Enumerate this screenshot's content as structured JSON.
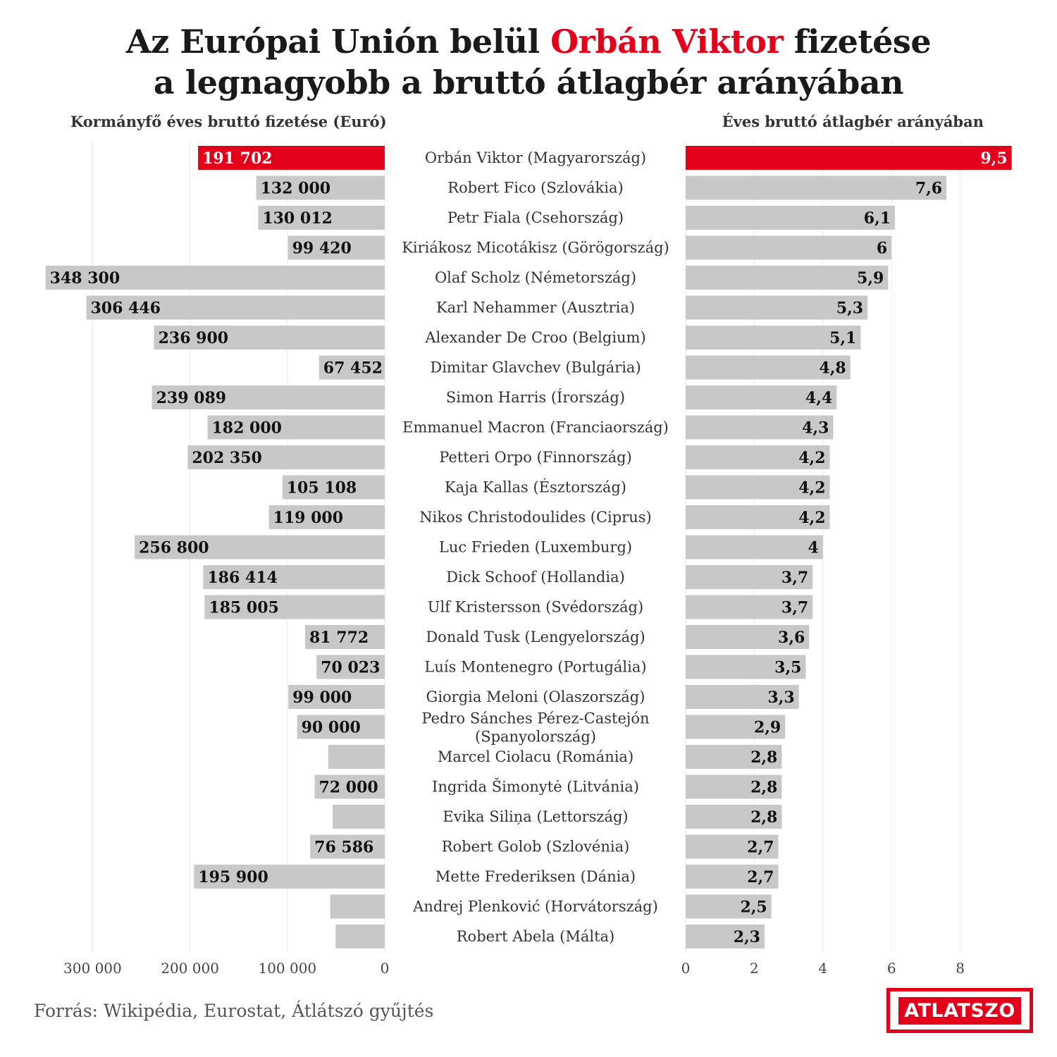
{
  "title": {
    "line1_prefix": "Az Európai Unión belül ",
    "line1_highlight": "Orbán Viktor",
    "line1_suffix": " fizetése",
    "line2": "a legnagyobb a bruttó átlagbér arányában"
  },
  "left_subtitle": "Kormányfő éves bruttó fizetése (Euró)",
  "right_subtitle": "Éves bruttó átlagbér arányában",
  "source": "Forrás: Wikipédia, Eurostat, Átlátszó gyűjtés",
  "logo": "ATLATSZO",
  "colors": {
    "highlight": "#e2001a",
    "bar": "#c8c8c8",
    "grid": "#ebebeb"
  },
  "chart_data": [
    {
      "type": "bar",
      "orientation": "horizontal-reversed",
      "title": "Kormányfő éves bruttó fizetése (Euró)",
      "xlim": [
        0,
        350000
      ],
      "ticks": [
        {
          "value": 300000,
          "label": "300 000"
        },
        {
          "value": 200000,
          "label": "200 000"
        },
        {
          "value": 100000,
          "label": "100 000"
        },
        {
          "value": 0,
          "label": "0"
        }
      ],
      "values": [
        191702,
        132000,
        130012,
        99420,
        348300,
        306446,
        236900,
        67452,
        239089,
        182000,
        202350,
        105108,
        119000,
        256800,
        186414,
        185005,
        81772,
        70023,
        99000,
        90000,
        58000,
        72000,
        53500,
        76586,
        195900,
        56000,
        50500
      ],
      "value_labels": [
        "191 702",
        "132 000",
        "130 012",
        "99 420",
        "348 300",
        "306 446",
        "236 900",
        "67 452",
        "239 089",
        "182 000",
        "202 350",
        "105 108",
        "119 000",
        "256 800",
        "186 414",
        "185 005",
        "81 772",
        "70 023",
        "99 000",
        "90 000",
        "",
        "72 000",
        "",
        "76 586",
        "195 900",
        "",
        ""
      ]
    },
    {
      "type": "bar",
      "orientation": "horizontal",
      "title": "Éves bruttó átlagbér arányában",
      "xlim": [
        0,
        9.5
      ],
      "ticks": [
        {
          "value": 0,
          "label": "0"
        },
        {
          "value": 2,
          "label": "2"
        },
        {
          "value": 4,
          "label": "4"
        },
        {
          "value": 6,
          "label": "6"
        },
        {
          "value": 8,
          "label": "8"
        }
      ],
      "values": [
        9.5,
        7.6,
        6.1,
        6.0,
        5.9,
        5.3,
        5.1,
        4.8,
        4.4,
        4.3,
        4.2,
        4.2,
        4.2,
        4.0,
        3.7,
        3.7,
        3.6,
        3.5,
        3.3,
        2.9,
        2.8,
        2.8,
        2.8,
        2.7,
        2.7,
        2.5,
        2.3
      ],
      "value_labels": [
        "9,5",
        "7,6",
        "6,1",
        "6",
        "5,9",
        "5,3",
        "5,1",
        "4,8",
        "4,4",
        "4,3",
        "4,2",
        "4,2",
        "4,2",
        "4",
        "3,7",
        "3,7",
        "3,6",
        "3,5",
        "3,3",
        "2,9",
        "2,8",
        "2,8",
        "2,8",
        "2,7",
        "2,7",
        "2,5",
        "2,3"
      ]
    }
  ],
  "categories": [
    {
      "name": "Orbán Viktor (Magyarország)",
      "highlight": true
    },
    {
      "name": "Robert Fico (Szlovákia)"
    },
    {
      "name": "Petr Fiala (Csehország)"
    },
    {
      "name": "Kiriákosz Micotákisz (Görögország)"
    },
    {
      "name": "Olaf Scholz (Németország)"
    },
    {
      "name": "Karl Nehammer (Ausztria)"
    },
    {
      "name": "Alexander De Croo (Belgium)"
    },
    {
      "name": "Dimitar Glavchev (Bulgária)"
    },
    {
      "name": "Simon Harris (Írország)"
    },
    {
      "name": "Emmanuel Macron (Franciaország)"
    },
    {
      "name": "Petteri Orpo (Finnország)"
    },
    {
      "name": "Kaja Kallas (Észtország)"
    },
    {
      "name": "Nikos Christodoulides (Ciprus)"
    },
    {
      "name": "Luc Frieden (Luxemburg)"
    },
    {
      "name": "Dick Schoof (Hollandia)"
    },
    {
      "name": "Ulf Kristersson (Svédország)"
    },
    {
      "name": "Donald Tusk (Lengyelország)"
    },
    {
      "name": "Luís Montenegro (Portugália)"
    },
    {
      "name": "Giorgia Meloni (Olaszország)"
    },
    {
      "name": "Pedro Sánches Pérez-Castejón",
      "name2": "(Spanyolország)"
    },
    {
      "name": "Marcel Ciolacu (Románia)"
    },
    {
      "name": "Ingrida Šimonytė (Litvánia)"
    },
    {
      "name": "Evika Siliņa (Lettország)"
    },
    {
      "name": "Robert Golob (Szlovénia)"
    },
    {
      "name": "Mette Frederiksen (Dánia)"
    },
    {
      "name": "Andrej Plenković (Horvátország)"
    },
    {
      "name": "Robert Abela (Málta)"
    }
  ]
}
